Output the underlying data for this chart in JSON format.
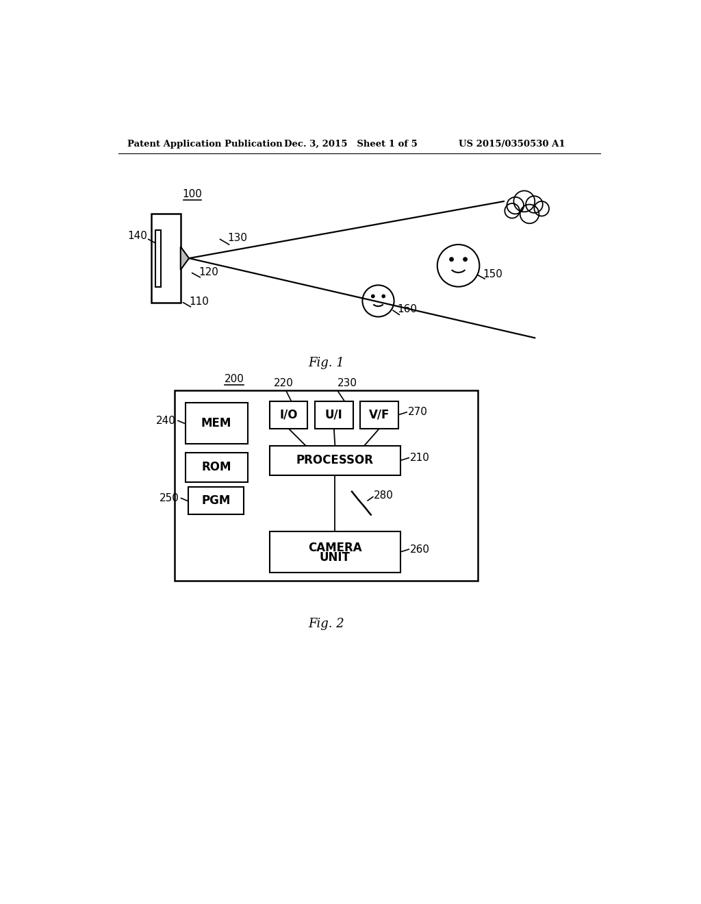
{
  "bg_color": "#ffffff",
  "header_left": "Patent Application Publication",
  "header_mid": "Dec. 3, 2015   Sheet 1 of 5",
  "header_right": "US 2015/0350530 A1",
  "fig1_caption": "Fig. 1",
  "fig2_caption": "Fig. 2"
}
